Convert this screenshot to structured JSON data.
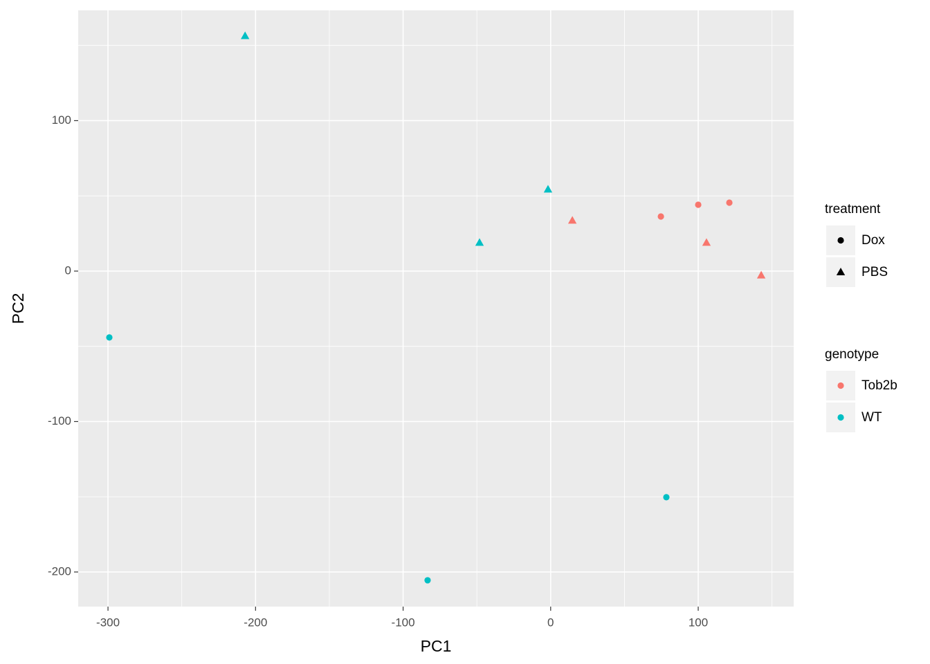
{
  "chart_data": {
    "type": "scatter",
    "x_label": "PC1",
    "y_label": "PC2",
    "xlim": [
      -320.2,
      164.7
    ],
    "ylim": [
      -223.0,
      173.3
    ],
    "xticks": [
      -300,
      -200,
      -100,
      0,
      100
    ],
    "yticks": [
      -200,
      -100,
      0,
      100
    ],
    "xminorticks": [
      -250,
      -150,
      -50,
      50,
      150
    ],
    "yminorticks": [
      -150,
      -50,
      50,
      150
    ],
    "grid": true,
    "legends": [
      {
        "title": "treatment",
        "entries": [
          {
            "label": "Dox",
            "shape": "circle"
          },
          {
            "label": "PBS",
            "shape": "triangle"
          }
        ]
      },
      {
        "title": "genotype",
        "entries": [
          {
            "label": "Tob2b",
            "color": "#f8766d"
          },
          {
            "label": "WT",
            "color": "#00bfc4"
          }
        ]
      }
    ],
    "series": [
      {
        "genotype": "Tob2b",
        "treatment": "Dox",
        "x": [
          74.7,
          100,
          121.1
        ],
        "y": [
          36.3,
          44.1,
          45.5
        ]
      },
      {
        "genotype": "Tob2b",
        "treatment": "PBS",
        "x": [
          14.7,
          105.6,
          142.7
        ],
        "y": [
          33.6,
          18.9,
          -2.8
        ]
      },
      {
        "genotype": "WT",
        "treatment": "Dox",
        "x": [
          -299.1,
          78.4,
          -83.4
        ],
        "y": [
          -44.1,
          -150.3,
          -205.5
        ]
      },
      {
        "genotype": "WT",
        "treatment": "PBS",
        "x": [
          -207.1,
          -48.2,
          -1.8
        ],
        "y": [
          156.3,
          18.9,
          54.3
        ]
      }
    ]
  }
}
